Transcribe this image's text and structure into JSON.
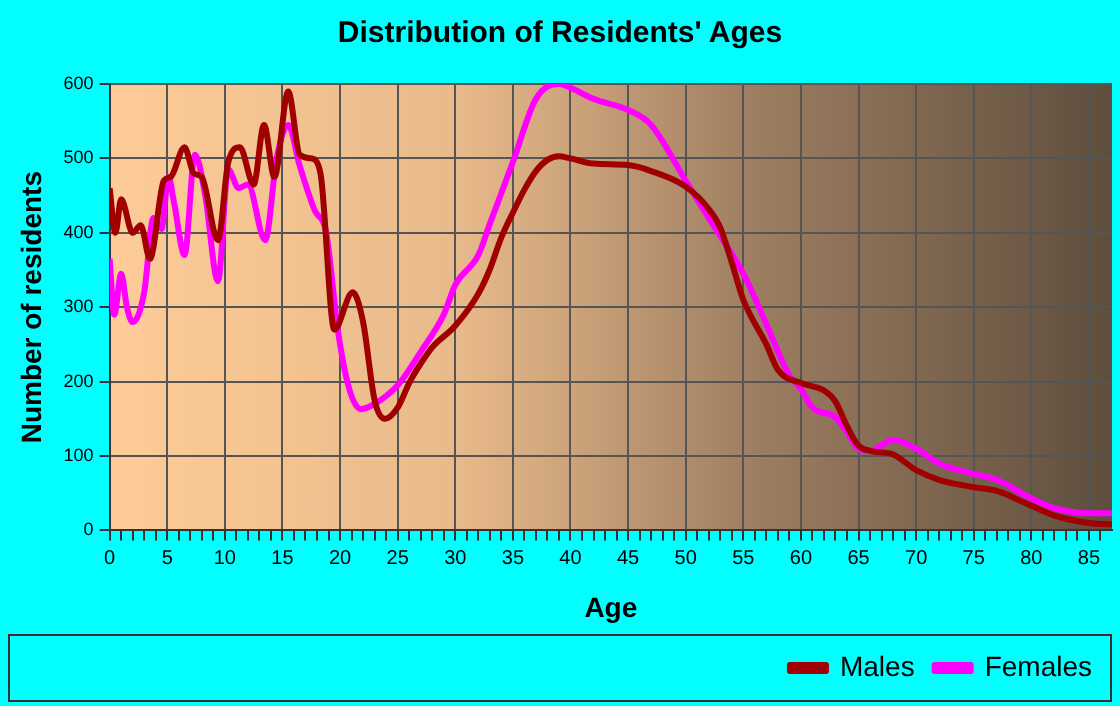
{
  "chart_data": {
    "type": "line",
    "title": "Distribution of Residents' Ages",
    "xlabel": "Age",
    "ylabel": "Number of residents",
    "xlim": [
      0,
      87
    ],
    "ylim": [
      0,
      600
    ],
    "xticks": [
      0,
      {
        "value": 1,
        "label": null
      },
      {
        "value": 2,
        "label": null
      },
      {
        "value": 3,
        "label": null
      },
      {
        "value": 4,
        "label": null
      },
      5,
      {
        "value": 6,
        "label": null
      },
      {
        "value": 7,
        "label": null
      },
      {
        "value": 8,
        "label": null
      },
      {
        "value": 9,
        "label": null
      },
      10,
      {
        "value": 11,
        "label": null
      },
      {
        "value": 12,
        "label": null
      },
      {
        "value": 13,
        "label": null
      },
      {
        "value": 14,
        "label": null
      },
      15,
      {
        "value": 16,
        "label": null
      },
      {
        "value": 17,
        "label": null
      },
      {
        "value": 18,
        "label": null
      },
      {
        "value": 19,
        "label": null
      },
      20,
      {
        "value": 21,
        "label": null
      },
      {
        "value": 22,
        "label": null
      },
      {
        "value": 23,
        "label": null
      },
      {
        "value": 24,
        "label": null
      },
      25,
      {
        "value": 26,
        "label": null
      },
      {
        "value": 27,
        "label": null
      },
      {
        "value": 28,
        "label": null
      },
      {
        "value": 29,
        "label": null
      },
      30,
      {
        "value": 31,
        "label": null
      },
      {
        "value": 32,
        "label": null
      },
      {
        "value": 33,
        "label": null
      },
      {
        "value": 34,
        "label": null
      },
      35,
      {
        "value": 36,
        "label": null
      },
      {
        "value": 37,
        "label": null
      },
      {
        "value": 38,
        "label": null
      },
      {
        "value": 39,
        "label": null
      },
      40,
      {
        "value": 41,
        "label": null
      },
      {
        "value": 42,
        "label": null
      },
      {
        "value": 43,
        "label": null
      },
      {
        "value": 44,
        "label": null
      },
      45,
      {
        "value": 46,
        "label": null
      },
      {
        "value": 47,
        "label": null
      },
      {
        "value": 48,
        "label": null
      },
      {
        "value": 49,
        "label": null
      },
      50,
      {
        "value": 51,
        "label": null
      },
      {
        "value": 52,
        "label": null
      },
      {
        "value": 53,
        "label": null
      },
      {
        "value": 54,
        "label": null
      },
      55,
      {
        "value": 56,
        "label": null
      },
      {
        "value": 57,
        "label": null
      },
      {
        "value": 58,
        "label": null
      },
      {
        "value": 59,
        "label": null
      },
      60,
      {
        "value": 61,
        "label": null
      },
      {
        "value": 62,
        "label": null
      },
      {
        "value": 63,
        "label": null
      },
      {
        "value": 64,
        "label": null
      },
      65,
      {
        "value": 66,
        "label": null
      },
      {
        "value": 67,
        "label": null
      },
      {
        "value": 68,
        "label": null
      },
      {
        "value": 69,
        "label": null
      },
      70,
      {
        "value": 71,
        "label": null
      },
      {
        "value": 72,
        "label": null
      },
      {
        "value": 73,
        "label": null
      },
      {
        "value": 74,
        "label": null
      },
      75,
      {
        "value": 76,
        "label": null
      },
      {
        "value": 77,
        "label": null
      },
      {
        "value": 78,
        "label": null
      },
      {
        "value": 79,
        "label": null
      },
      80,
      {
        "value": 81,
        "label": null
      },
      {
        "value": 82,
        "label": null
      },
      {
        "value": 83,
        "label": null
      },
      {
        "value": 84,
        "label": null
      },
      85,
      {
        "value": 86,
        "label": null
      }
    ],
    "yticks": [
      0,
      100,
      200,
      300,
      400,
      500,
      600
    ],
    "grid": true,
    "legend": "bottom right",
    "marker": "none",
    "line_style": "solid",
    "series": [
      {
        "name": "Males",
        "color": "#a00000",
        "x": [
          0,
          0.5,
          1,
          2,
          2.7,
          3.5,
          4.7,
          5.3,
          6.5,
          7.3,
          8,
          9.4,
          10.3,
          11.3,
          12.5,
          13.4,
          14.3,
          15.5,
          16.5,
          17.5,
          18.3,
          19.5,
          21.1,
          22,
          23,
          23.9,
          25,
          26,
          27,
          28,
          30,
          32,
          33,
          34,
          35,
          36,
          37,
          38,
          39,
          40,
          42,
          45,
          47,
          50,
          52,
          53,
          54,
          55,
          57,
          58,
          60,
          62,
          63,
          64,
          65,
          66,
          68,
          70,
          72,
          75,
          77,
          80,
          82,
          85,
          87
        ],
        "values": [
          460,
          400,
          445,
          400,
          410,
          365,
          470,
          475,
          515,
          480,
          475,
          390,
          495,
          515,
          465,
          545,
          475,
          590,
          505,
          500,
          480,
          270,
          320,
          280,
          175,
          150,
          165,
          198,
          224,
          246,
          275,
          318,
          351,
          394,
          427,
          458,
          483,
          498,
          503,
          500,
          493,
          491,
          483,
          462,
          432,
          407,
          360,
          310,
          250,
          216,
          198,
          188,
          173,
          140,
          114,
          107,
          102,
          81,
          68,
          58,
          53,
          33,
          20,
          10,
          8
        ]
      },
      {
        "name": "Females",
        "color": "#ff00ff",
        "x": [
          0,
          0.4,
          1,
          1.5,
          2,
          3,
          3.8,
          4.5,
          5.1,
          5.6,
          6.5,
          7.4,
          8.3,
          9.4,
          10.3,
          11.2,
          12,
          13.5,
          14.5,
          15.5,
          16.5,
          17.8,
          18.8,
          19.8,
          20.8,
          21.8,
          23,
          25,
          27,
          29,
          30,
          32,
          33,
          35,
          37,
          39,
          40,
          42,
          45,
          47,
          50,
          52,
          55,
          57,
          58,
          59,
          60,
          61,
          63,
          64,
          65,
          66,
          68,
          70,
          72,
          75,
          77,
          80,
          82,
          85,
          87
        ],
        "values": [
          365,
          290,
          345,
          300,
          280,
          320,
          420,
          405,
          475,
          440,
          370,
          505,
          450,
          335,
          485,
          460,
          465,
          390,
          500,
          545,
          490,
          430,
          400,
          270,
          190,
          163,
          170,
          195,
          240,
          290,
          330,
          370,
          412,
          495,
          580,
          600,
          595,
          580,
          565,
          545,
          470,
          420,
          345,
          277,
          241,
          208,
          190,
          165,
          152,
          132,
          110,
          107,
          122,
          110,
          90,
          76,
          68,
          43,
          30,
          23,
          23
        ]
      }
    ]
  }
}
